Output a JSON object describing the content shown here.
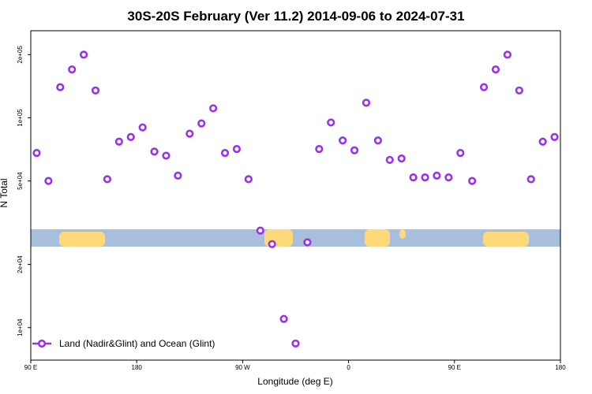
{
  "chart_data": {
    "type": "scatter",
    "title": "30S-20S February (Ver 11.2)   2014-09-06 to 2024-07-31",
    "xlabel": "Longitude (deg E)",
    "ylabel": "N Total",
    "y_scale": "log",
    "xlim": [
      90,
      540
    ],
    "ylim": [
      7000,
      260000
    ],
    "x_ticks": [
      {
        "value": 90,
        "label": "90 E"
      },
      {
        "value": 180,
        "label": "180"
      },
      {
        "value": 270,
        "label": "90 W"
      },
      {
        "value": 360,
        "label": "0"
      },
      {
        "value": 450,
        "label": "90 E"
      },
      {
        "value": 540,
        "label": "180"
      }
    ],
    "y_ticks": [
      {
        "value": 10000,
        "label": "1e+04"
      },
      {
        "value": 20000,
        "label": "2e+04"
      },
      {
        "value": 50000,
        "label": "5e+04"
      },
      {
        "value": 100000,
        "label": "1e+05"
      },
      {
        "value": 200000,
        "label": "2e+05"
      }
    ],
    "grid": false,
    "legend_position": "bottom-left",
    "series": [
      {
        "name": "Land (Nadir&Glint) and Ocean (Glint)",
        "color": "#9b30f0",
        "x": [
          95,
          105,
          115,
          125,
          135,
          145,
          155,
          165,
          175,
          185,
          195,
          205,
          215,
          225,
          235,
          245,
          255,
          265,
          275,
          285,
          295,
          305,
          315,
          325,
          335,
          345,
          355,
          365,
          375,
          385,
          395,
          405,
          415,
          425,
          435,
          445,
          455,
          465,
          475,
          485,
          495,
          505,
          515,
          525,
          535
        ],
        "y": [
          68000,
          50000,
          140000,
          170000,
          200000,
          135000,
          51000,
          77000,
          81000,
          90000,
          69000,
          66000,
          53000,
          84000,
          94000,
          111000,
          68000,
          71000,
          51000,
          29000,
          25000,
          11000,
          8400,
          25500,
          71000,
          95000,
          78000,
          70000,
          118000,
          78000,
          63000,
          64000,
          52000,
          52000,
          53000,
          52000,
          68000,
          50000,
          140000,
          170000,
          200000,
          135000,
          51000,
          77000,
          81000
        ]
      }
    ],
    "map_band": {
      "ocean_color": "#a7bedd",
      "land_color": "#fdd97a"
    }
  }
}
